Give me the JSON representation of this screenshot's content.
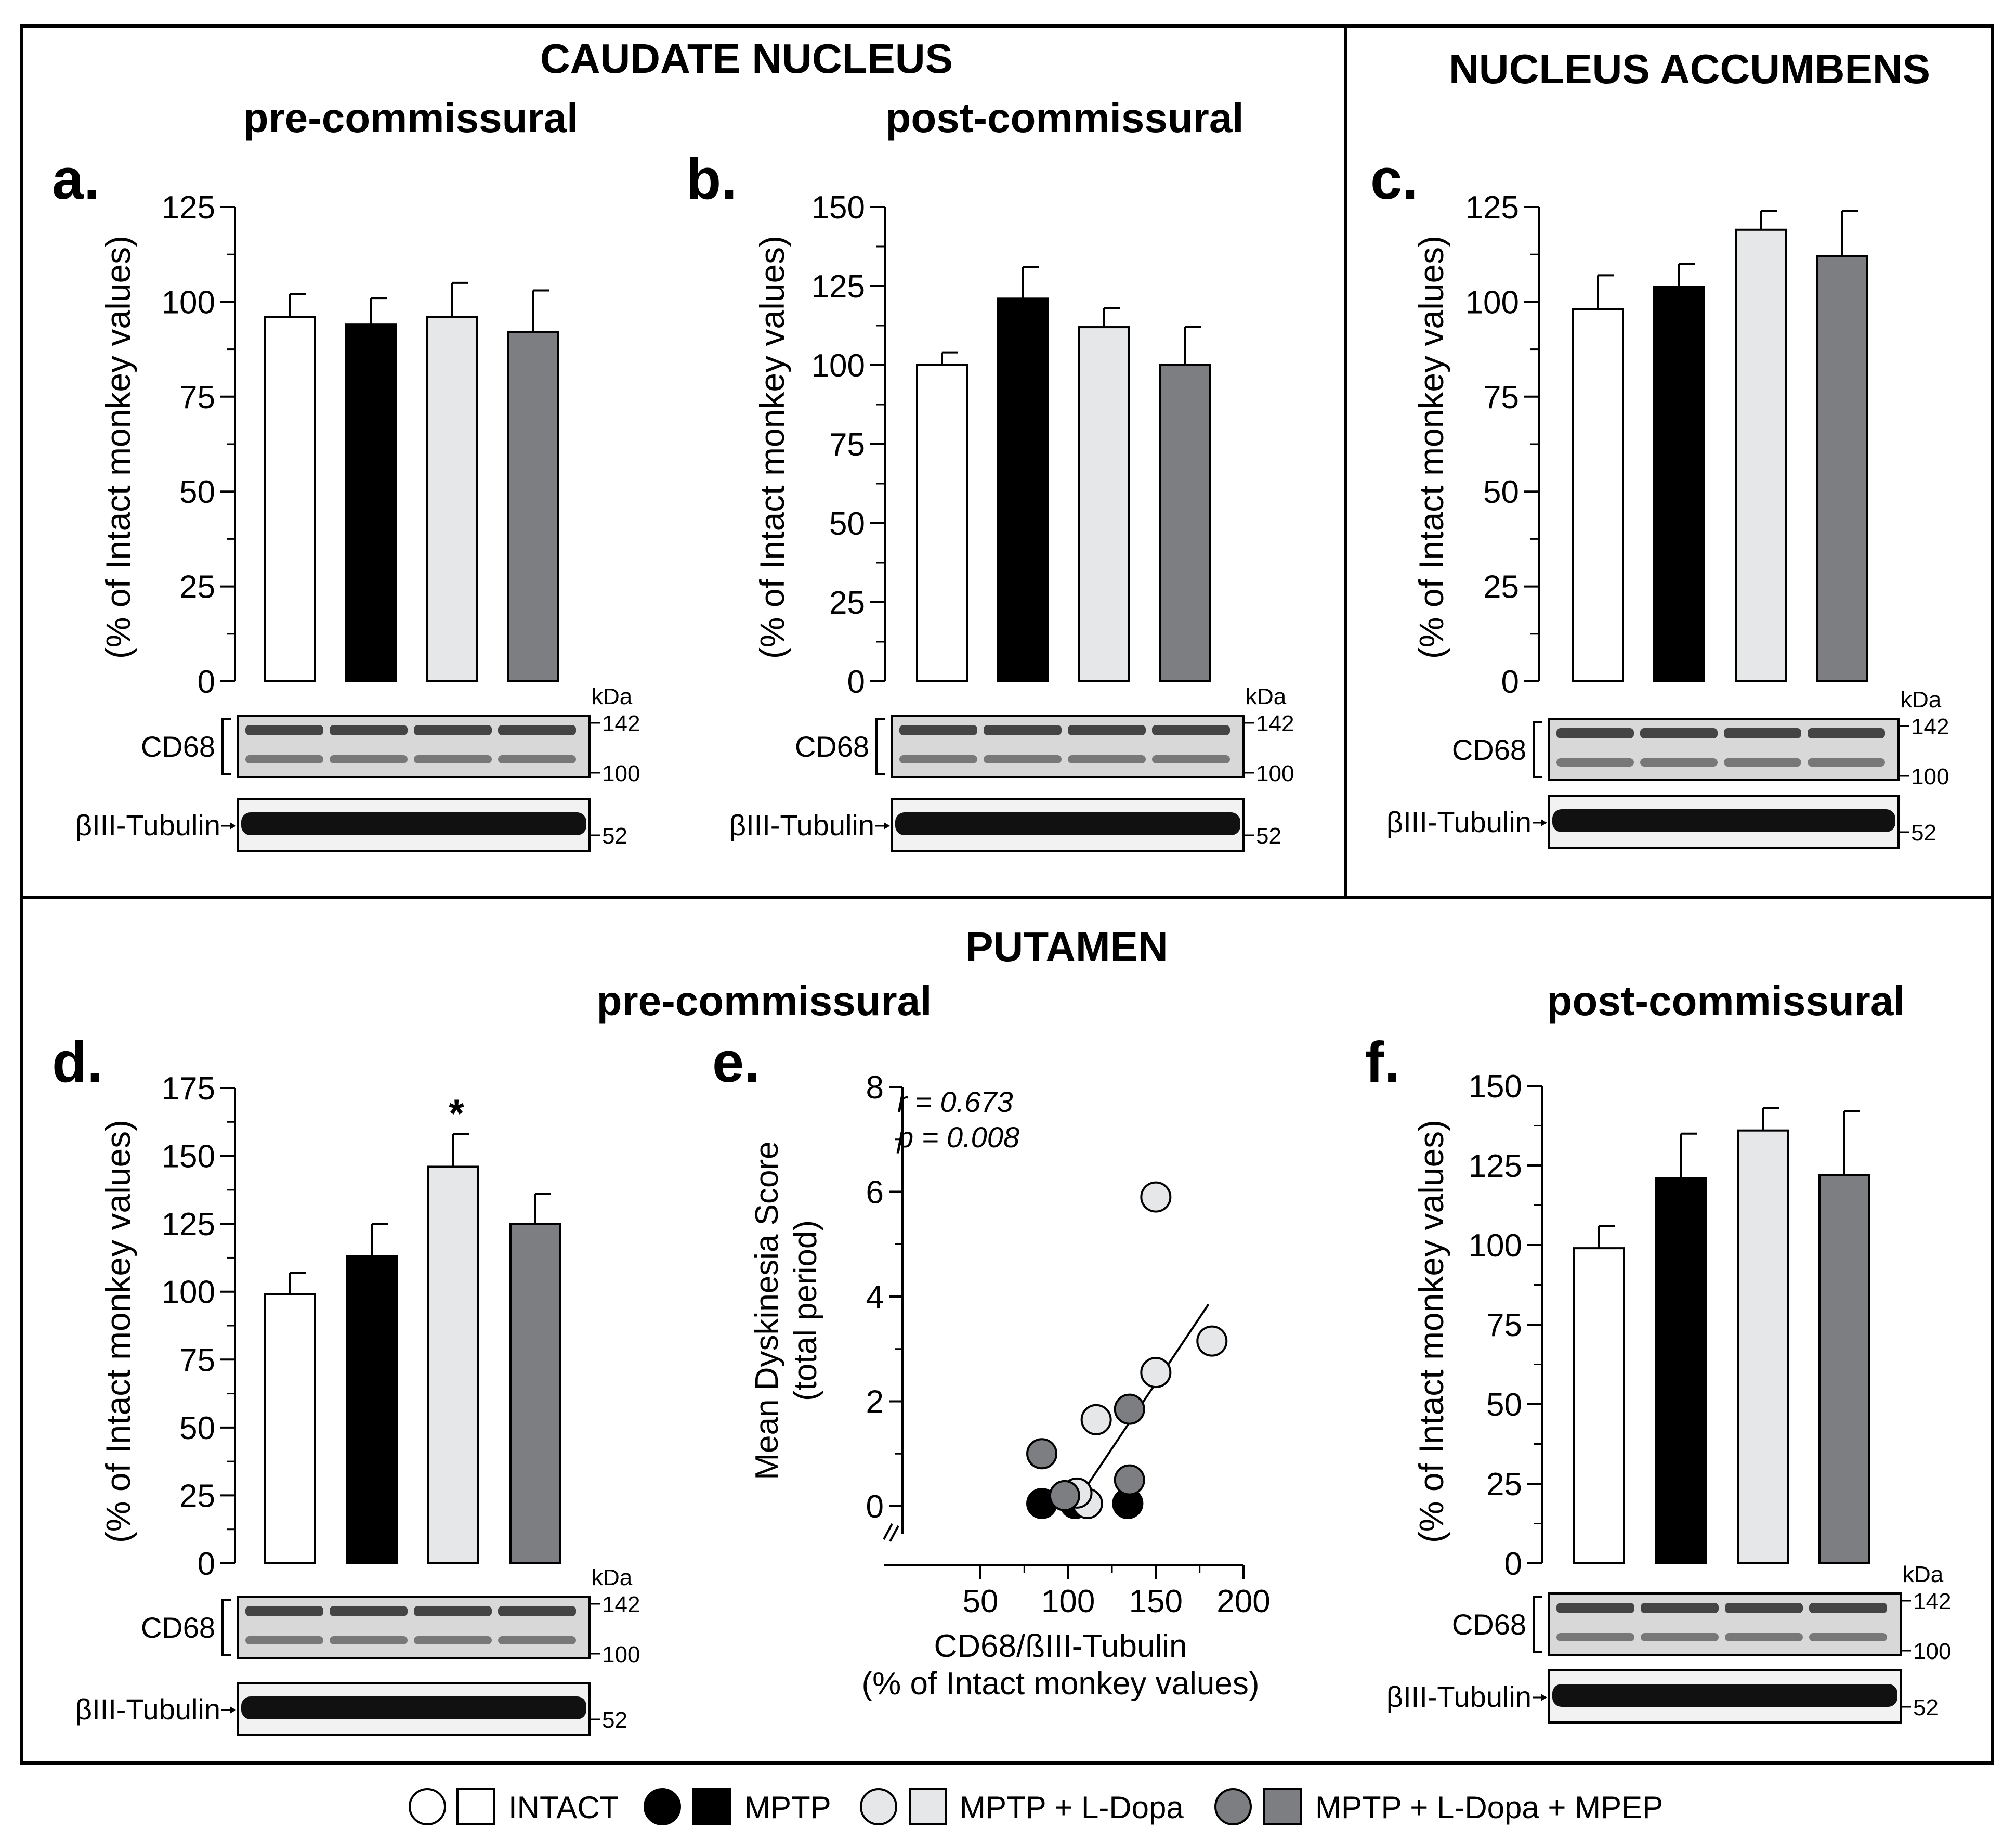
{
  "colors": {
    "intact": "#ffffff",
    "mptp": "#000000",
    "mptp_ldopa": "#e6e7e8",
    "mptp_ldopa_mpep": "#7d7e81",
    "outline": "#000000",
    "blot_band": "#2a2a2a",
    "blot_bg": "#d8d8d8"
  },
  "sections": {
    "caudate_title": "CAUDATE NUCLEUS",
    "accumbens_title": "NUCLEUS ACCUMBENS",
    "putamen_title": "PUTAMEN",
    "pre_label": "pre-commissural",
    "post_label": "post-commissural"
  },
  "blot": {
    "kda": "kDa",
    "cd68": "CD68",
    "tubulin": "βIII-Tubulin",
    "m142": "142",
    "m100": "100",
    "m52": "52"
  },
  "legend": {
    "items": [
      {
        "label": "INTACT",
        "color": "#ffffff"
      },
      {
        "label": "MPTP",
        "color": "#000000"
      },
      {
        "label": "MPTP + L-Dopa",
        "color": "#e6e7e8"
      },
      {
        "label": "MPTP + L-Dopa + MPEP",
        "color": "#7d7e81"
      }
    ]
  },
  "chart_data": [
    {
      "id": "a",
      "panel_label": "a.",
      "type": "bar",
      "ylabel": "(% of Intact monkey values)",
      "ylim": [
        0,
        125
      ],
      "yticks": [
        0,
        25,
        50,
        75,
        100,
        125
      ],
      "categories": [
        "INTACT",
        "MPTP",
        "MPTP + L-Dopa",
        "MPTP + L-Dopa + MPEP"
      ],
      "values": [
        96,
        94,
        96,
        92
      ],
      "errors": [
        6,
        7,
        9,
        11
      ],
      "annotations": []
    },
    {
      "id": "b",
      "panel_label": "b.",
      "type": "bar",
      "ylabel": "(% of Intact monkey values)",
      "ylim": [
        0,
        150
      ],
      "yticks": [
        0,
        25,
        50,
        75,
        100,
        125,
        150
      ],
      "categories": [
        "INTACT",
        "MPTP",
        "MPTP + L-Dopa",
        "MPTP + L-Dopa + MPEP"
      ],
      "values": [
        100,
        121,
        112,
        100
      ],
      "errors": [
        4,
        10,
        6,
        12
      ],
      "annotations": []
    },
    {
      "id": "c",
      "panel_label": "c.",
      "type": "bar",
      "ylabel": "(% of Intact monkey values)",
      "ylim": [
        0,
        125
      ],
      "yticks": [
        0,
        25,
        50,
        75,
        100,
        125
      ],
      "categories": [
        "INTACT",
        "MPTP",
        "MPTP + L-Dopa",
        "MPTP + L-Dopa + MPEP"
      ],
      "values": [
        98,
        104,
        119,
        112
      ],
      "errors": [
        9,
        6,
        5,
        12
      ],
      "annotations": []
    },
    {
      "id": "d",
      "panel_label": "d.",
      "type": "bar",
      "ylabel": "(% of Intact monkey values)",
      "ylim": [
        0,
        175
      ],
      "yticks": [
        0,
        25,
        50,
        75,
        100,
        125,
        150,
        175
      ],
      "categories": [
        "INTACT",
        "MPTP",
        "MPTP + L-Dopa",
        "MPTP + L-Dopa + MPEP"
      ],
      "values": [
        99,
        113,
        146,
        125
      ],
      "errors": [
        8,
        12,
        12,
        11
      ],
      "annotations": [
        {
          "category_index": 2,
          "text": "*"
        }
      ]
    },
    {
      "id": "e",
      "panel_label": "e.",
      "type": "scatter",
      "xlabel_line1": "CD68/ßIII-Tubulin",
      "xlabel_line2": "(% of Intact monkey values)",
      "ylabel_line1": "Mean Dyskinesia Score",
      "ylabel_line2": "(total period)",
      "xlim": [
        30,
        200
      ],
      "ylim": [
        0,
        8
      ],
      "xticks": [
        50,
        100,
        150,
        200
      ],
      "yticks": [
        0,
        2,
        4,
        6,
        8
      ],
      "stat_r": "r = 0.673",
      "stat_p": "p = 0.008",
      "fit_line": {
        "x": [
          105,
          180
        ],
        "y": [
          0.1,
          3.85
        ]
      },
      "points": [
        {
          "x": 85,
          "y": 0.05,
          "group": "MPTP"
        },
        {
          "x": 104,
          "y": 0.05,
          "group": "MPTP"
        },
        {
          "x": 134,
          "y": 0.05,
          "group": "MPTP"
        },
        {
          "x": 111,
          "y": 0.05,
          "group": "MPTP + L-Dopa"
        },
        {
          "x": 116,
          "y": 1.65,
          "group": "MPTP + L-Dopa"
        },
        {
          "x": 150,
          "y": 5.9,
          "group": "MPTP + L-Dopa"
        },
        {
          "x": 150,
          "y": 2.55,
          "group": "MPTP + L-Dopa"
        },
        {
          "x": 182,
          "y": 3.15,
          "group": "MPTP + L-Dopa"
        },
        {
          "x": 105,
          "y": 0.25,
          "group": "MPTP + L-Dopa"
        },
        {
          "x": 85,
          "y": 1.0,
          "group": "MPTP + L-Dopa + MPEP"
        },
        {
          "x": 98,
          "y": 0.2,
          "group": "MPTP + L-Dopa + MPEP"
        },
        {
          "x": 135,
          "y": 1.85,
          "group": "MPTP + L-Dopa + MPEP"
        },
        {
          "x": 135,
          "y": 0.5,
          "group": "MPTP + L-Dopa + MPEP"
        }
      ]
    },
    {
      "id": "f",
      "panel_label": "f.",
      "type": "bar",
      "ylabel": "(% of Intact monkey values)",
      "ylim": [
        0,
        150
      ],
      "yticks": [
        0,
        25,
        50,
        75,
        100,
        125,
        150
      ],
      "categories": [
        "INTACT",
        "MPTP",
        "MPTP + L-Dopa",
        "MPTP + L-Dopa + MPEP"
      ],
      "values": [
        99,
        121,
        136,
        122
      ],
      "errors": [
        7,
        14,
        7,
        20
      ],
      "annotations": []
    }
  ]
}
